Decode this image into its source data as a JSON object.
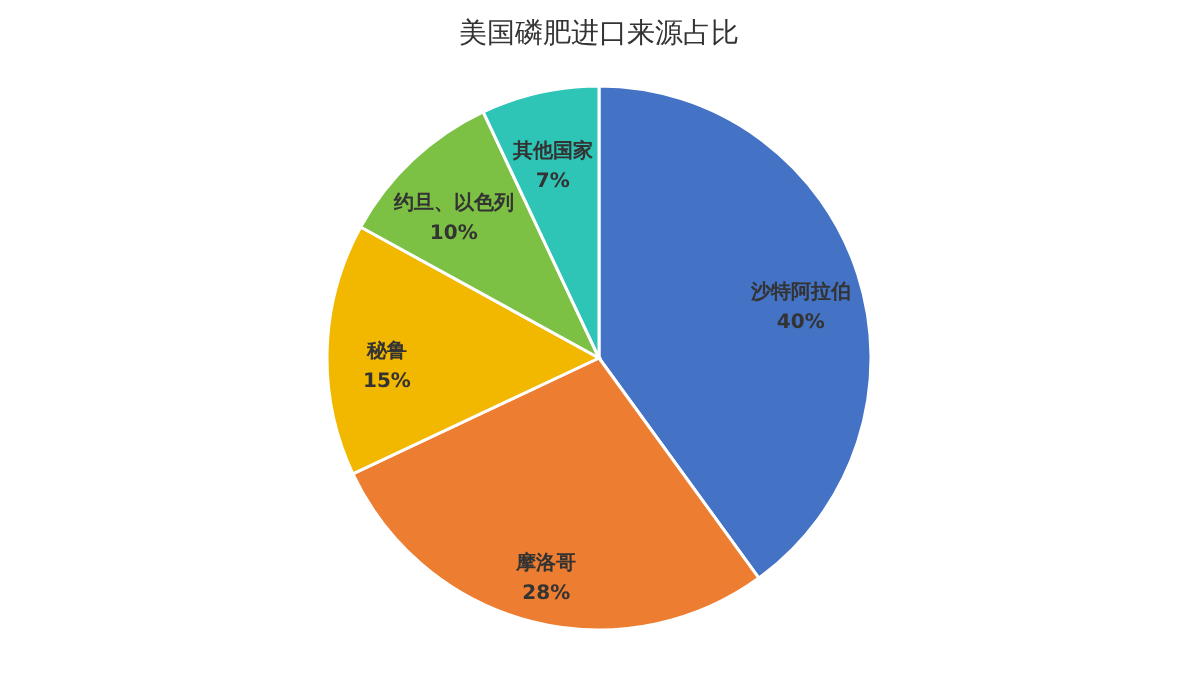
{
  "chart_data": {
    "type": "pie",
    "title": "美国磷肥进口来源占比",
    "categories": [
      "沙特阿拉伯",
      "摩洛哥",
      "秘鲁",
      "约旦、以色列",
      "其他国家"
    ],
    "values": [
      40,
      28,
      15,
      10,
      7
    ],
    "colors": [
      "#4472c4",
      "#ed7d31",
      "#f2b800",
      "#7cc143",
      "#2ec4b6"
    ],
    "value_labels": [
      "40%",
      "28%",
      "15%",
      "10%",
      "7%"
    ],
    "legend": false
  }
}
